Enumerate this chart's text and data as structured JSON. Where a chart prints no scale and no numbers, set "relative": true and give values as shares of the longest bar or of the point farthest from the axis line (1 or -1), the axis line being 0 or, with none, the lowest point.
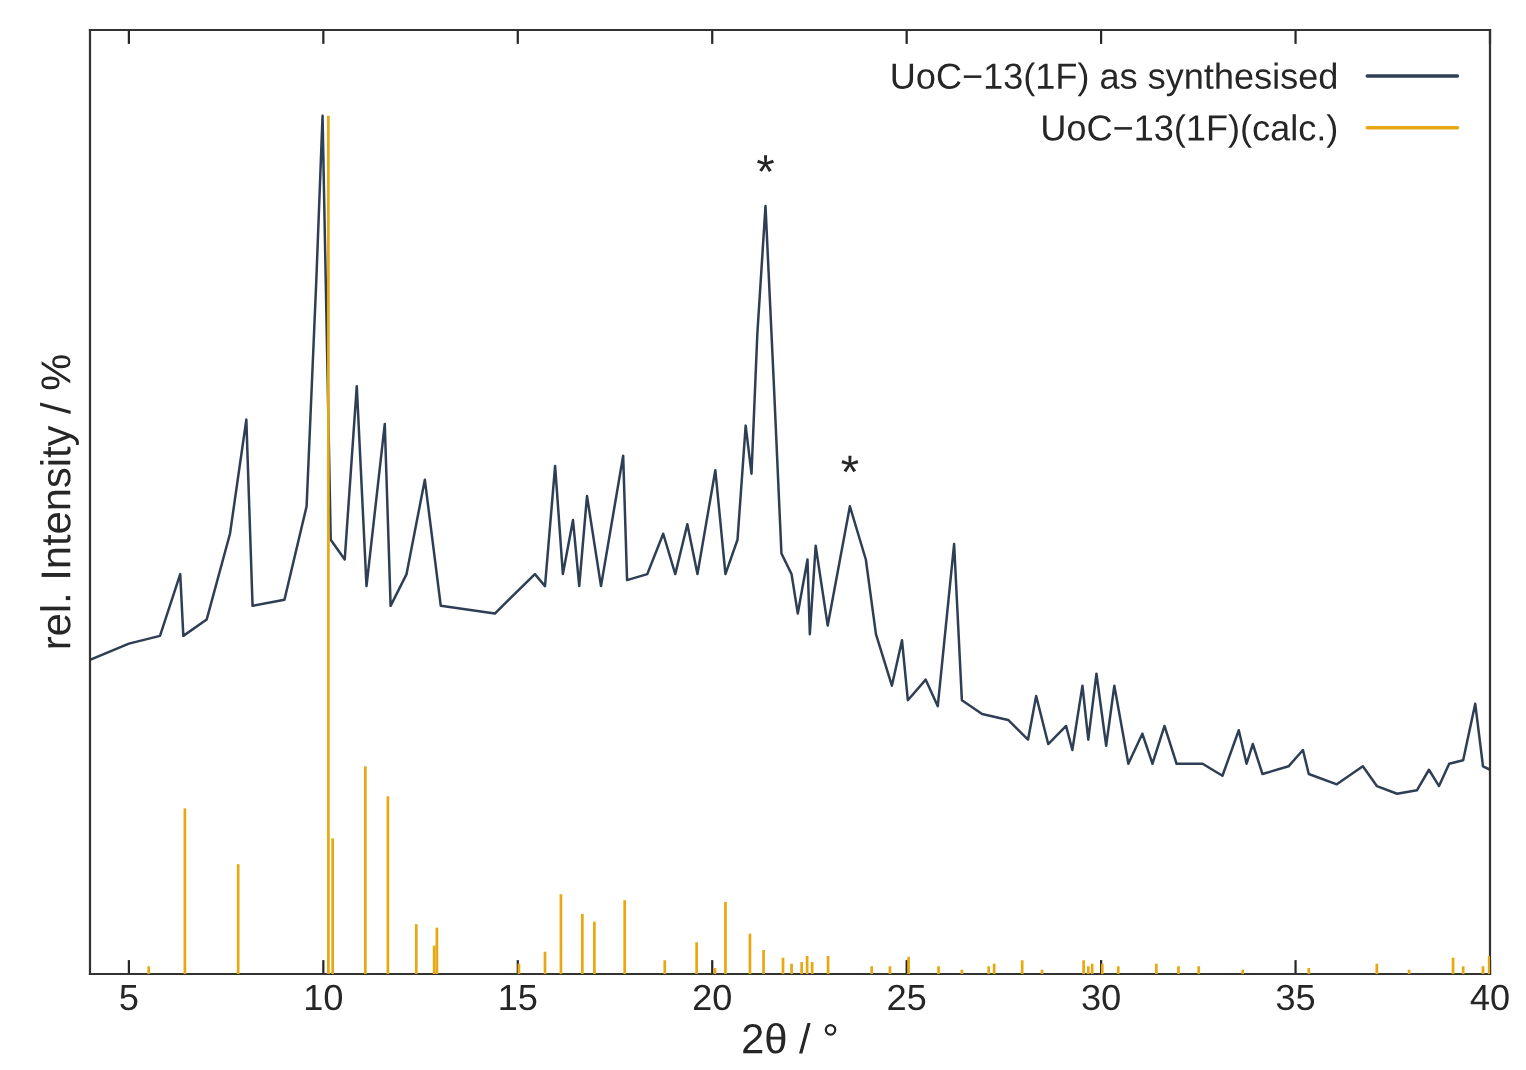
{
  "chart_data": {
    "type": "line",
    "relative": true,
    "xlabel": "2θ / °",
    "ylabel": "rel. Intensity / %",
    "xlim": [
      4,
      40
    ],
    "xticks": [
      5,
      10,
      15,
      20,
      25,
      30,
      35,
      40
    ],
    "tick_labels": "x",
    "legend": "top right",
    "grid": false,
    "series": [
      {
        "name": "UoC−13(1F) as synthesised",
        "color": "#2e3f55",
        "x": [
          4.0,
          5.0,
          5.8,
          6.32,
          6.4,
          7.0,
          7.6,
          8.02,
          8.18,
          9.0,
          9.57,
          9.82,
          9.98,
          10.19,
          10.55,
          10.86,
          11.11,
          11.58,
          11.73,
          12.14,
          12.61,
          13.02,
          14.41,
          15.44,
          15.7,
          15.96,
          16.16,
          16.42,
          16.58,
          16.78,
          17.14,
          17.71,
          17.81,
          18.33,
          18.74,
          19.05,
          19.36,
          19.62,
          20.08,
          20.34,
          20.65,
          20.86,
          21.01,
          21.16,
          21.37,
          21.58,
          21.78,
          22.04,
          22.2,
          22.45,
          22.51,
          22.66,
          22.87,
          22.97,
          23.54,
          23.95,
          24.21,
          24.62,
          24.88,
          25.03,
          25.49,
          25.8,
          26.22,
          26.42,
          26.94,
          27.61,
          28.12,
          28.33,
          28.64,
          29.1,
          29.26,
          29.52,
          29.67,
          29.88,
          30.13,
          30.34,
          30.7,
          31.06,
          31.32,
          31.63,
          31.94,
          32.61,
          33.12,
          33.54,
          33.74,
          33.9,
          34.15,
          34.82,
          35.19,
          35.34,
          36.06,
          36.73,
          37.09,
          37.61,
          38.12,
          38.43,
          38.69,
          38.95,
          39.31,
          39.62,
          39.82,
          40.0
        ],
        "values": [
          0.366,
          0.385,
          0.394,
          0.466,
          0.394,
          0.413,
          0.513,
          0.646,
          0.429,
          0.436,
          0.545,
          0.809,
          1.0,
          0.506,
          0.483,
          0.685,
          0.452,
          0.641,
          0.429,
          0.466,
          0.576,
          0.429,
          0.42,
          0.466,
          0.452,
          0.592,
          0.466,
          0.529,
          0.452,
          0.557,
          0.452,
          0.604,
          0.459,
          0.466,
          0.513,
          0.466,
          0.524,
          0.466,
          0.587,
          0.466,
          0.506,
          0.639,
          0.583,
          0.746,
          0.895,
          0.692,
          0.49,
          0.466,
          0.42,
          0.483,
          0.396,
          0.499,
          0.436,
          0.406,
          0.545,
          0.483,
          0.396,
          0.336,
          0.389,
          0.319,
          0.343,
          0.312,
          0.501,
          0.319,
          0.303,
          0.296,
          0.273,
          0.324,
          0.268,
          0.289,
          0.261,
          0.336,
          0.273,
          0.35,
          0.266,
          0.336,
          0.245,
          0.28,
          0.245,
          0.289,
          0.245,
          0.245,
          0.231,
          0.284,
          0.245,
          0.268,
          0.233,
          0.242,
          0.261,
          0.233,
          0.221,
          0.242,
          0.219,
          0.21,
          0.214,
          0.238,
          0.219,
          0.245,
          0.249,
          0.315,
          0.242,
          0.238
        ]
      },
      {
        "name": "UoC−13(1F)(calc.)",
        "type": "bar",
        "color": "#e8a812",
        "x": [
          5.51,
          6.44,
          7.81,
          10.13,
          10.24,
          11.08,
          11.66,
          12.39,
          12.85,
          12.92,
          15.03,
          15.7,
          16.11,
          16.66,
          16.97,
          17.75,
          18.78,
          19.6,
          20.07,
          20.34,
          20.97,
          21.32,
          21.82,
          22.04,
          22.3,
          22.44,
          22.57,
          22.98,
          24.1,
          24.57,
          25.05,
          25.82,
          26.42,
          27.11,
          27.25,
          27.97,
          28.48,
          29.55,
          29.67,
          29.77,
          30.03,
          30.44,
          31.42,
          31.99,
          32.51,
          33.64,
          35.34,
          37.09,
          37.92,
          39.05,
          39.31,
          39.82,
          39.98
        ],
        "values": [
          0.009,
          0.193,
          0.128,
          1.0,
          0.158,
          0.242,
          0.207,
          0.058,
          0.033,
          0.054,
          0.012,
          0.026,
          0.093,
          0.07,
          0.061,
          0.086,
          0.016,
          0.037,
          0.007,
          0.084,
          0.047,
          0.028,
          0.019,
          0.012,
          0.014,
          0.021,
          0.014,
          0.021,
          0.009,
          0.009,
          0.02,
          0.009,
          0.005,
          0.009,
          0.012,
          0.016,
          0.005,
          0.016,
          0.009,
          0.012,
          0.012,
          0.009,
          0.012,
          0.009,
          0.009,
          0.005,
          0.007,
          0.012,
          0.005,
          0.019,
          0.009,
          0.009,
          0.021
        ]
      }
    ],
    "annotations": [
      {
        "text": "*",
        "x": 21.37,
        "y": 0.895
      },
      {
        "text": "*",
        "x": 23.54,
        "y": 0.545
      }
    ]
  }
}
